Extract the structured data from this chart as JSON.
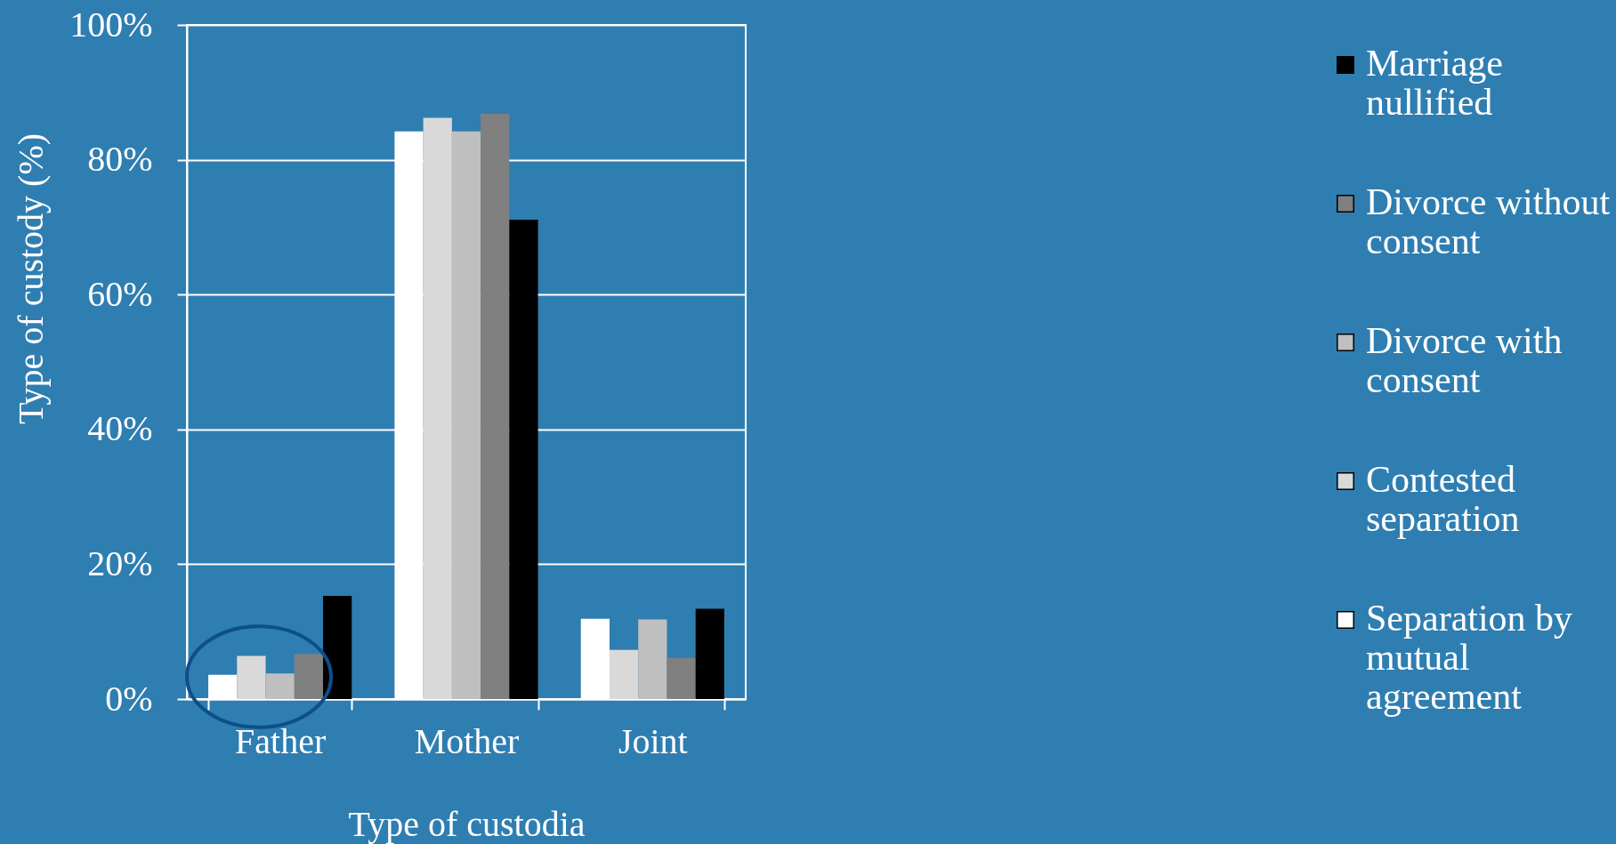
{
  "chart_data": {
    "type": "bar",
    "categories": [
      "Father",
      "Mother",
      "Joint"
    ],
    "xlabel": "Type of custodia",
    "ylabel": "Type of custody (%)",
    "ylim": [
      0,
      100
    ],
    "yticks": [
      {
        "value": 0,
        "label": "0%"
      },
      {
        "value": 20,
        "label": "20%"
      },
      {
        "value": 40,
        "label": "40%"
      },
      {
        "value": 60,
        "label": "60%"
      },
      {
        "value": 80,
        "label": "80%"
      },
      {
        "value": 100,
        "label": "100%"
      }
    ],
    "grid": "y",
    "legend": "right",
    "series": [
      {
        "name": "Separation by mutual agreement",
        "color": "#ffffff",
        "values": [
          3.6,
          84.2,
          11.9
        ]
      },
      {
        "name": "Contested separation",
        "color": "#d9d9d9",
        "values": [
          6.4,
          86.2,
          7.3
        ]
      },
      {
        "name": "Divorce with consent",
        "color": "#bfbfbf",
        "values": [
          3.8,
          84.2,
          11.8
        ]
      },
      {
        "name": "Divorce without consent",
        "color": "#808080",
        "values": [
          6.7,
          86.8,
          6.1
        ]
      },
      {
        "name": "Marriage nullified",
        "color": "#000000",
        "values": [
          15.3,
          71.1,
          13.4
        ]
      }
    ]
  }
}
